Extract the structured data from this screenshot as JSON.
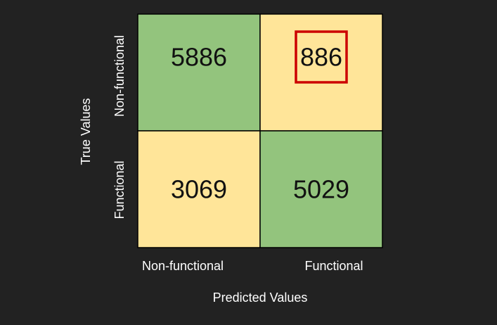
{
  "chart_data": {
    "type": "heatmap",
    "title": "",
    "xlabel": "Predicted Values",
    "ylabel": "True Values",
    "x_categories": [
      "Non-functional",
      "Functional"
    ],
    "y_categories": [
      "Non-functional",
      "Functional"
    ],
    "values": [
      [
        5886,
        886
      ],
      [
        3069,
        5029
      ]
    ],
    "highlighted_cell": {
      "row": 0,
      "col": 1
    },
    "colors": {
      "correct": "#93c47d",
      "incorrect": "#ffe599",
      "highlight": "#cc0000",
      "background": "#222222"
    }
  }
}
